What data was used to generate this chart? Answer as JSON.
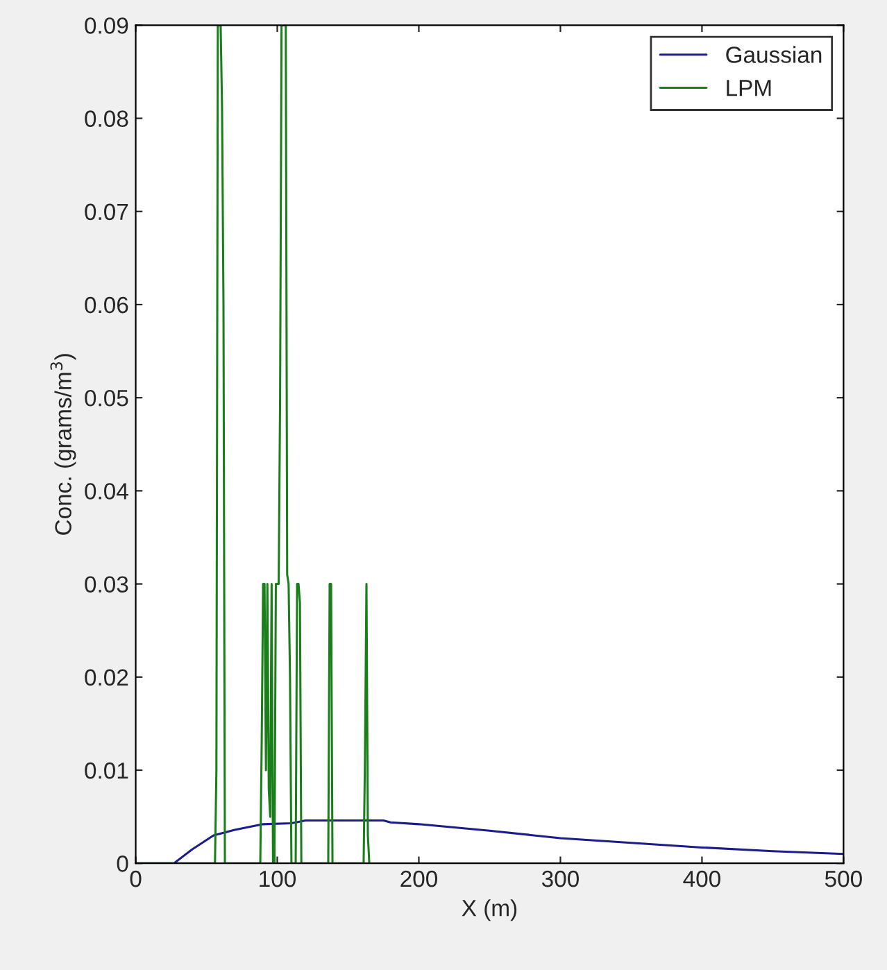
{
  "chart_data": {
    "type": "line",
    "xlabel": "X (m)",
    "ylabel": "Conc. (grams/m$^{3}$)",
    "xlim": [
      0,
      500
    ],
    "xticks": [
      0,
      100,
      200,
      300,
      400,
      500
    ],
    "ylim": [
      0,
      0.09
    ],
    "yticks": [
      0,
      0.01,
      0.02,
      0.03,
      0.04,
      0.05,
      0.06,
      0.07,
      0.08,
      0.09
    ],
    "grid": false,
    "legend": "top right",
    "line_style": "solid",
    "marker": "none",
    "series": [
      {
        "name": "Gaussian",
        "color": "#1c1c8c",
        "x": [
          0,
          27,
          40,
          55,
          70,
          90,
          110,
          120,
          175,
          180,
          200,
          250,
          300,
          350,
          400,
          450,
          500
        ],
        "values": [
          0,
          0,
          0.0015,
          0.003,
          0.0036,
          0.0042,
          0.0043,
          0.0046,
          0.0046,
          0.0044,
          0.0042,
          0.0035,
          0.0027,
          0.0022,
          0.0017,
          0.0013,
          0.001
        ]
      },
      {
        "name": "LPM",
        "color": "#1a7f1a",
        "x": [
          0,
          56,
          57,
          58,
          60,
          61,
          62,
          62.5,
          63,
          88,
          89,
          90,
          91,
          92,
          93,
          94,
          95,
          96,
          97,
          98,
          99,
          100,
          101,
          102,
          103,
          106,
          107,
          108,
          109,
          110,
          113,
          114,
          115,
          116,
          117,
          136,
          137,
          138,
          139,
          161,
          162,
          163,
          164,
          165
        ],
        "values": [
          0,
          0,
          0.01,
          0.09,
          0.09,
          0.081,
          0.06,
          0.03,
          0,
          0,
          0.013,
          0.03,
          0.03,
          0.01,
          0.03,
          0.008,
          0.005,
          0.03,
          0,
          0,
          0.03,
          0.03,
          0.03,
          0.05,
          0.09,
          0.09,
          0.031,
          0.03,
          0.02,
          0,
          0,
          0.03,
          0.03,
          0.028,
          0,
          0,
          0.03,
          0.03,
          0,
          0,
          0.012,
          0.03,
          0.003,
          0
        ]
      }
    ]
  }
}
